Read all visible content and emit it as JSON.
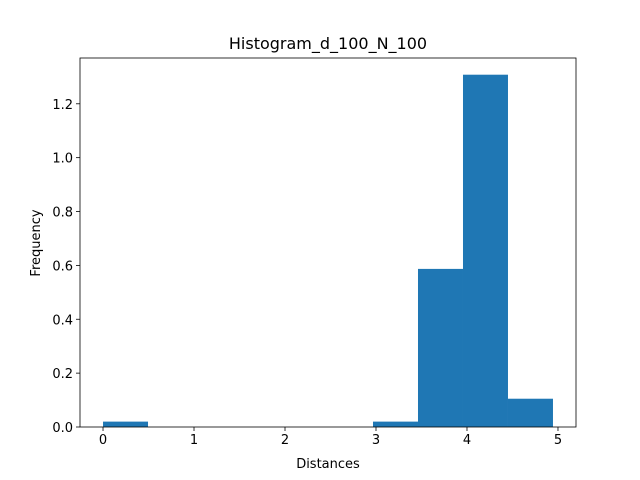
{
  "chart_data": {
    "type": "histogram",
    "title": "Histogram_d_100_N_100",
    "x_label": "Distances",
    "y_label": "Frequency",
    "bins": [
      0,
      0.4945,
      0.989,
      1.4835,
      1.978,
      2.4725,
      2.967,
      3.4615,
      3.956,
      4.4505,
      4.945
    ],
    "values": [
      0.02,
      0,
      0,
      0,
      0,
      0,
      0.02,
      0.587,
      1.308,
      0.105
    ],
    "color": "#1f77b4",
    "xlim": [
      -0.253,
      5.198
    ],
    "xticks": [
      0,
      1,
      2,
      3,
      4,
      5
    ],
    "ylim": [
      0,
      1.37
    ],
    "yticks": [
      {
        "value": 0,
        "label": "0.0"
      },
      0.2,
      0.4,
      0.6,
      0.8,
      {
        "value": 1,
        "label": "1.0"
      },
      1.2
    ]
  }
}
